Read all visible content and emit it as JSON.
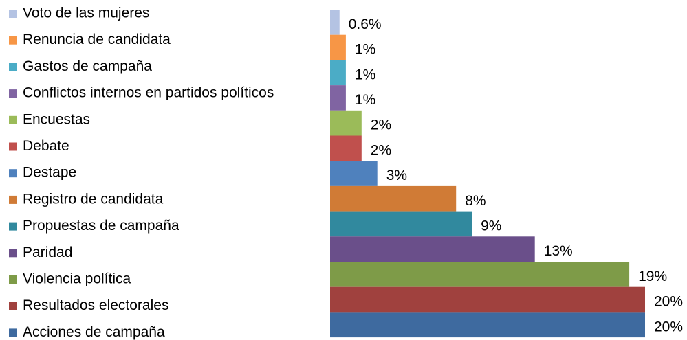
{
  "chart_data": {
    "type": "bar",
    "orientation": "horizontal",
    "categories": [
      "Voto de las mujeres",
      "Renuncia de candidata",
      "Gastos de campaña",
      "Conflictos internos en partidos políticos",
      "Encuestas",
      "Debate",
      "Destape",
      "Registro de candidata",
      "Propuestas de campaña",
      "Paridad",
      "Violencia política",
      "Resultados electorales",
      "Acciones de campaña"
    ],
    "values": [
      0.6,
      1,
      1,
      1,
      2,
      2,
      3,
      8,
      9,
      13,
      19,
      20,
      20
    ],
    "value_labels": [
      "0.6%",
      "1%",
      "1%",
      "1%",
      "2%",
      "2%",
      "3%",
      "8%",
      "9%",
      "13%",
      "19%",
      "20%",
      "20%"
    ],
    "colors": [
      "#b4c3e3",
      "#f79646",
      "#4bacc6",
      "#8064a2",
      "#9bbb59",
      "#c0504d",
      "#4f81bd",
      "#d07b36",
      "#31899e",
      "#6a4f8a",
      "#7e9b48",
      "#a0413e",
      "#3e6a9f"
    ],
    "legend": "left"
  }
}
